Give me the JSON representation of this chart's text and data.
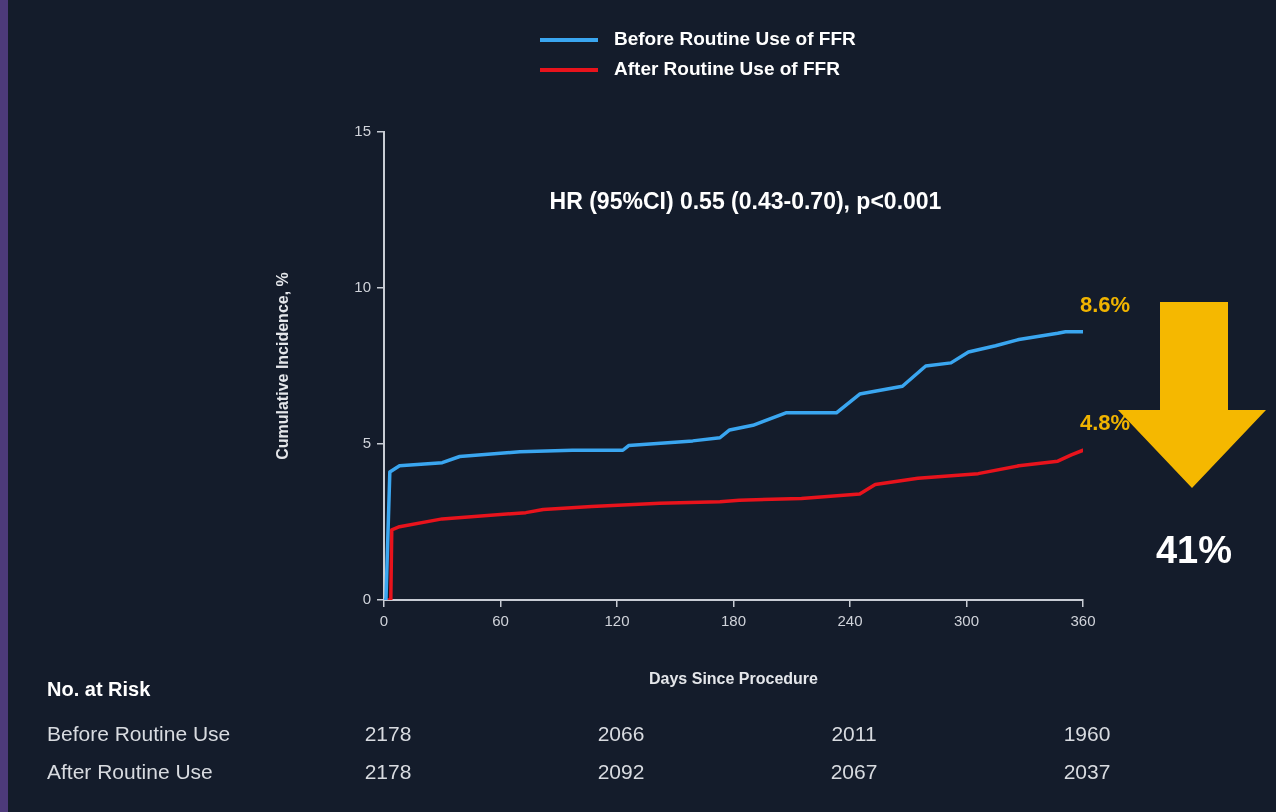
{
  "chart_data": {
    "type": "line",
    "xlabel": "Days Since Procedure",
    "ylabel": "Cumulative Incidence, %",
    "xlim": [
      0,
      360
    ],
    "xticks": [
      0,
      60,
      120,
      180,
      240,
      300,
      360
    ],
    "ylim": [
      0,
      15
    ],
    "yticks": [
      0,
      5,
      10,
      15
    ],
    "grid": false,
    "legend": "top",
    "marker": "none",
    "line_style": "solid",
    "series": [
      {
        "name": "Before Routine Use of FFR",
        "color": "#3aa6f0",
        "x": [
          0,
          1,
          3,
          8,
          30,
          39,
          60,
          70,
          97,
          123,
          126,
          159,
          173,
          178,
          190,
          207,
          233,
          245,
          267,
          279,
          292,
          301,
          315,
          327,
          347,
          351,
          360
        ],
        "values": [
          0,
          0,
          4.1,
          4.3,
          4.4,
          4.6,
          4.7,
          4.75,
          4.8,
          4.8,
          4.95,
          5.1,
          5.2,
          5.45,
          5.6,
          6.0,
          6.0,
          6.6,
          6.85,
          7.5,
          7.6,
          7.95,
          8.15,
          8.35,
          8.55,
          8.6,
          8.6
        ]
      },
      {
        "name": "After Routine Use of FFR",
        "color": "#e8131c",
        "x": [
          0,
          3.5,
          4,
          8,
          30,
          73,
          82,
          107,
          142,
          173,
          183,
          215,
          245,
          253,
          275,
          306,
          327,
          347,
          354,
          360
        ],
        "values": [
          0,
          0,
          2.25,
          2.35,
          2.6,
          2.8,
          2.9,
          3.0,
          3.1,
          3.15,
          3.2,
          3.25,
          3.4,
          3.7,
          3.9,
          4.05,
          4.3,
          4.45,
          4.65,
          4.8
        ]
      }
    ],
    "annotations": [
      "HR (95%CI) 0.55 (0.43-0.70), p<0.001",
      {
        "text": "8.6%",
        "x": 360,
        "y": 8.6
      },
      {
        "text": "4.8%",
        "x": 360,
        "y": 4.8
      },
      "41%",
      "No. at Risk",
      "Before Routine Use",
      "2178",
      "2066",
      "2011",
      "1960",
      "After Routine Use",
      "2178",
      "2092",
      "2067",
      "2037"
    ]
  }
}
